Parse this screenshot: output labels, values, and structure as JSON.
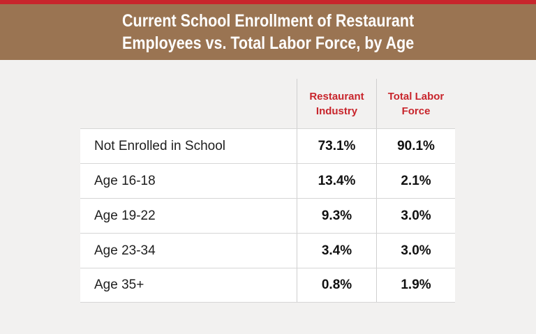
{
  "title": {
    "line1": "Current School Enrollment of Restaurant",
    "line2": "Employees vs. Total Labor Force, by Age"
  },
  "colors": {
    "accent_red": "#c8252c",
    "banner_brown": "#9a7452",
    "background": "#f2f1f0"
  },
  "columns": {
    "col1_line1": "Restaurant",
    "col1_line2": "Industry",
    "col2_line1": "Total Labor",
    "col2_line2": "Force"
  },
  "chart_data": {
    "type": "table",
    "title": "Current School Enrollment of Restaurant Employees vs. Total Labor Force, by Age",
    "columns": [
      "Restaurant Industry",
      "Total Labor Force"
    ],
    "rows": [
      {
        "label": "Not Enrolled in School",
        "restaurant": "73.1%",
        "labor": "90.1%"
      },
      {
        "label": "Age 16-18",
        "restaurant": "13.4%",
        "labor": "2.1%"
      },
      {
        "label": "Age 19-22",
        "restaurant": "9.3%",
        "labor": "3.0%"
      },
      {
        "label": "Age 23-34",
        "restaurant": "3.4%",
        "labor": "3.0%"
      },
      {
        "label": "Age 35+",
        "restaurant": "0.8%",
        "labor": "1.9%"
      }
    ]
  }
}
